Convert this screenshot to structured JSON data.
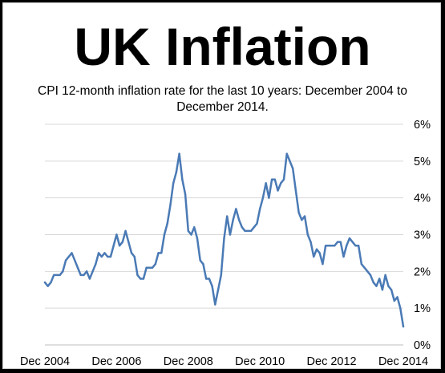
{
  "title": "UK Inflation",
  "chart_data": {
    "type": "line",
    "title": "CPI 12-month inflation rate for the last 10 years: December 2004 to December 2014.",
    "xlabel": "",
    "ylabel": "",
    "x_tick_labels": [
      "Dec 2004",
      "Dec 2006",
      "Dec 2008",
      "Dec 2010",
      "Dec 2012",
      "Dec 2014"
    ],
    "y_tick_labels": [
      "0%",
      "1%",
      "2%",
      "3%",
      "4%",
      "5%",
      "6%"
    ],
    "ylim": [
      0,
      6
    ],
    "xlim": [
      "2004-12",
      "2014-12"
    ],
    "grid": "horizontal",
    "legend": "none",
    "line_color": "#4a7ab5",
    "series": [
      {
        "values": [
          {
            "x": "2004-12",
            "y": 1.7
          },
          {
            "x": "2005-01",
            "y": 1.6
          },
          {
            "x": "2005-02",
            "y": 1.7
          },
          {
            "x": "2005-03",
            "y": 1.9
          },
          {
            "x": "2005-04",
            "y": 1.9
          },
          {
            "x": "2005-05",
            "y": 1.9
          },
          {
            "x": "2005-06",
            "y": 2.0
          },
          {
            "x": "2005-07",
            "y": 2.3
          },
          {
            "x": "2005-08",
            "y": 2.4
          },
          {
            "x": "2005-09",
            "y": 2.5
          },
          {
            "x": "2005-10",
            "y": 2.3
          },
          {
            "x": "2005-11",
            "y": 2.1
          },
          {
            "x": "2005-12",
            "y": 1.9
          },
          {
            "x": "2006-01",
            "y": 1.9
          },
          {
            "x": "2006-02",
            "y": 2.0
          },
          {
            "x": "2006-03",
            "y": 1.8
          },
          {
            "x": "2006-04",
            "y": 2.0
          },
          {
            "x": "2006-05",
            "y": 2.2
          },
          {
            "x": "2006-06",
            "y": 2.5
          },
          {
            "x": "2006-07",
            "y": 2.4
          },
          {
            "x": "2006-08",
            "y": 2.5
          },
          {
            "x": "2006-09",
            "y": 2.4
          },
          {
            "x": "2006-10",
            "y": 2.4
          },
          {
            "x": "2006-11",
            "y": 2.7
          },
          {
            "x": "2006-12",
            "y": 3.0
          },
          {
            "x": "2007-01",
            "y": 2.7
          },
          {
            "x": "2007-02",
            "y": 2.8
          },
          {
            "x": "2007-03",
            "y": 3.1
          },
          {
            "x": "2007-04",
            "y": 2.8
          },
          {
            "x": "2007-05",
            "y": 2.5
          },
          {
            "x": "2007-06",
            "y": 2.4
          },
          {
            "x": "2007-07",
            "y": 1.9
          },
          {
            "x": "2007-08",
            "y": 1.8
          },
          {
            "x": "2007-09",
            "y": 1.8
          },
          {
            "x": "2007-10",
            "y": 2.1
          },
          {
            "x": "2007-11",
            "y": 2.1
          },
          {
            "x": "2007-12",
            "y": 2.1
          },
          {
            "x": "2008-01",
            "y": 2.2
          },
          {
            "x": "2008-02",
            "y": 2.5
          },
          {
            "x": "2008-03",
            "y": 2.5
          },
          {
            "x": "2008-04",
            "y": 3.0
          },
          {
            "x": "2008-05",
            "y": 3.3
          },
          {
            "x": "2008-06",
            "y": 3.8
          },
          {
            "x": "2008-07",
            "y": 4.4
          },
          {
            "x": "2008-08",
            "y": 4.7
          },
          {
            "x": "2008-09",
            "y": 5.2
          },
          {
            "x": "2008-10",
            "y": 4.5
          },
          {
            "x": "2008-11",
            "y": 4.1
          },
          {
            "x": "2008-12",
            "y": 3.1
          },
          {
            "x": "2009-01",
            "y": 3.0
          },
          {
            "x": "2009-02",
            "y": 3.2
          },
          {
            "x": "2009-03",
            "y": 2.9
          },
          {
            "x": "2009-04",
            "y": 2.3
          },
          {
            "x": "2009-05",
            "y": 2.2
          },
          {
            "x": "2009-06",
            "y": 1.8
          },
          {
            "x": "2009-07",
            "y": 1.8
          },
          {
            "x": "2009-08",
            "y": 1.6
          },
          {
            "x": "2009-09",
            "y": 1.1
          },
          {
            "x": "2009-10",
            "y": 1.5
          },
          {
            "x": "2009-11",
            "y": 1.9
          },
          {
            "x": "2009-12",
            "y": 2.9
          },
          {
            "x": "2010-01",
            "y": 3.5
          },
          {
            "x": "2010-02",
            "y": 3.0
          },
          {
            "x": "2010-03",
            "y": 3.4
          },
          {
            "x": "2010-04",
            "y": 3.7
          },
          {
            "x": "2010-05",
            "y": 3.4
          },
          {
            "x": "2010-06",
            "y": 3.2
          },
          {
            "x": "2010-07",
            "y": 3.1
          },
          {
            "x": "2010-08",
            "y": 3.1
          },
          {
            "x": "2010-09",
            "y": 3.1
          },
          {
            "x": "2010-10",
            "y": 3.2
          },
          {
            "x": "2010-11",
            "y": 3.3
          },
          {
            "x": "2010-12",
            "y": 3.7
          },
          {
            "x": "2011-01",
            "y": 4.0
          },
          {
            "x": "2011-02",
            "y": 4.4
          },
          {
            "x": "2011-03",
            "y": 4.0
          },
          {
            "x": "2011-04",
            "y": 4.5
          },
          {
            "x": "2011-05",
            "y": 4.5
          },
          {
            "x": "2011-06",
            "y": 4.2
          },
          {
            "x": "2011-07",
            "y": 4.4
          },
          {
            "x": "2011-08",
            "y": 4.5
          },
          {
            "x": "2011-09",
            "y": 5.2
          },
          {
            "x": "2011-10",
            "y": 5.0
          },
          {
            "x": "2011-11",
            "y": 4.8
          },
          {
            "x": "2011-12",
            "y": 4.2
          },
          {
            "x": "2012-01",
            "y": 3.6
          },
          {
            "x": "2012-02",
            "y": 3.4
          },
          {
            "x": "2012-03",
            "y": 3.5
          },
          {
            "x": "2012-04",
            "y": 3.0
          },
          {
            "x": "2012-05",
            "y": 2.8
          },
          {
            "x": "2012-06",
            "y": 2.4
          },
          {
            "x": "2012-07",
            "y": 2.6
          },
          {
            "x": "2012-08",
            "y": 2.5
          },
          {
            "x": "2012-09",
            "y": 2.2
          },
          {
            "x": "2012-10",
            "y": 2.7
          },
          {
            "x": "2012-11",
            "y": 2.7
          },
          {
            "x": "2012-12",
            "y": 2.7
          },
          {
            "x": "2013-01",
            "y": 2.7
          },
          {
            "x": "2013-02",
            "y": 2.8
          },
          {
            "x": "2013-03",
            "y": 2.8
          },
          {
            "x": "2013-04",
            "y": 2.4
          },
          {
            "x": "2013-05",
            "y": 2.7
          },
          {
            "x": "2013-06",
            "y": 2.9
          },
          {
            "x": "2013-07",
            "y": 2.8
          },
          {
            "x": "2013-08",
            "y": 2.7
          },
          {
            "x": "2013-09",
            "y": 2.7
          },
          {
            "x": "2013-10",
            "y": 2.2
          },
          {
            "x": "2013-11",
            "y": 2.1
          },
          {
            "x": "2013-12",
            "y": 2.0
          },
          {
            "x": "2014-01",
            "y": 1.9
          },
          {
            "x": "2014-02",
            "y": 1.7
          },
          {
            "x": "2014-03",
            "y": 1.6
          },
          {
            "x": "2014-04",
            "y": 1.8
          },
          {
            "x": "2014-05",
            "y": 1.5
          },
          {
            "x": "2014-06",
            "y": 1.9
          },
          {
            "x": "2014-07",
            "y": 1.6
          },
          {
            "x": "2014-08",
            "y": 1.5
          },
          {
            "x": "2014-09",
            "y": 1.2
          },
          {
            "x": "2014-10",
            "y": 1.3
          },
          {
            "x": "2014-11",
            "y": 1.0
          },
          {
            "x": "2014-12",
            "y": 0.5
          }
        ]
      }
    ]
  }
}
